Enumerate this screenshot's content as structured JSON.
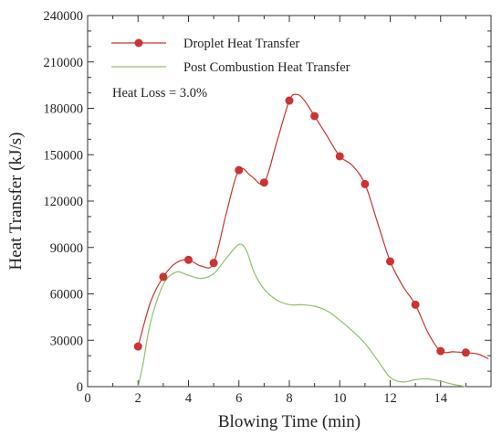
{
  "chart_data": {
    "type": "line",
    "xlabel": "Blowing Time (min)",
    "ylabel": "Heat Transfer (kJ/s)",
    "xlim": [
      0,
      16
    ],
    "ylim": [
      0,
      240000
    ],
    "x_ticks": [
      0,
      2,
      4,
      6,
      8,
      10,
      12,
      14
    ],
    "y_ticks": [
      0,
      30000,
      60000,
      90000,
      120000,
      150000,
      180000,
      210000,
      240000
    ],
    "annotation": "Heat Loss = 3.0%",
    "legend_position": "top-left",
    "grid": false,
    "series": [
      {
        "name": "Droplet Heat Transfer",
        "color": "#cc3333",
        "marker": "circle",
        "x": [
          2,
          3,
          4,
          5,
          6,
          7,
          8,
          9,
          10,
          11,
          12,
          13,
          14,
          15
        ],
        "y": [
          26000,
          71000,
          82000,
          80000,
          140000,
          132000,
          185000,
          175000,
          149000,
          131000,
          81000,
          53000,
          23000,
          22000
        ],
        "curve": [
          [
            2,
            26000
          ],
          [
            2.5,
            55000
          ],
          [
            3,
            71000
          ],
          [
            3.5,
            80000
          ],
          [
            4,
            82000
          ],
          [
            4.5,
            78000
          ],
          [
            5,
            80000
          ],
          [
            5.5,
            112000
          ],
          [
            6,
            140000
          ],
          [
            6.5,
            136000
          ],
          [
            7,
            132000
          ],
          [
            7.5,
            158000
          ],
          [
            8,
            185000
          ],
          [
            8.3,
            189000
          ],
          [
            8.6,
            185000
          ],
          [
            9,
            175000
          ],
          [
            9.5,
            162000
          ],
          [
            10,
            149000
          ],
          [
            10.5,
            143000
          ],
          [
            11,
            131000
          ],
          [
            11.5,
            106000
          ],
          [
            12,
            81000
          ],
          [
            12.5,
            65000
          ],
          [
            13,
            53000
          ],
          [
            13.5,
            35000
          ],
          [
            14,
            23000
          ],
          [
            14.5,
            22500
          ],
          [
            15,
            22000
          ],
          [
            15.5,
            21000
          ],
          [
            15.9,
            18000
          ]
        ]
      },
      {
        "name": "Post Combustion Heat Transfer",
        "color": "#8fbf6a",
        "marker": "none",
        "x": [
          2,
          2.2,
          2.5,
          3,
          3.5,
          4,
          4.5,
          5,
          5.5,
          6,
          6.3,
          6.6,
          7,
          7.5,
          8,
          8.5,
          9,
          9.5,
          10,
          10.5,
          11,
          11.5,
          12,
          12.5,
          13,
          13.5,
          14,
          14.5,
          15
        ],
        "y": [
          0,
          15000,
          42000,
          66000,
          74000,
          72000,
          70000,
          73000,
          83000,
          92000,
          88000,
          74000,
          63000,
          56000,
          53000,
          53000,
          52000,
          49000,
          43000,
          36000,
          28000,
          17000,
          6000,
          3000,
          4500,
          5000,
          3500,
          1500,
          0
        ]
      }
    ]
  }
}
